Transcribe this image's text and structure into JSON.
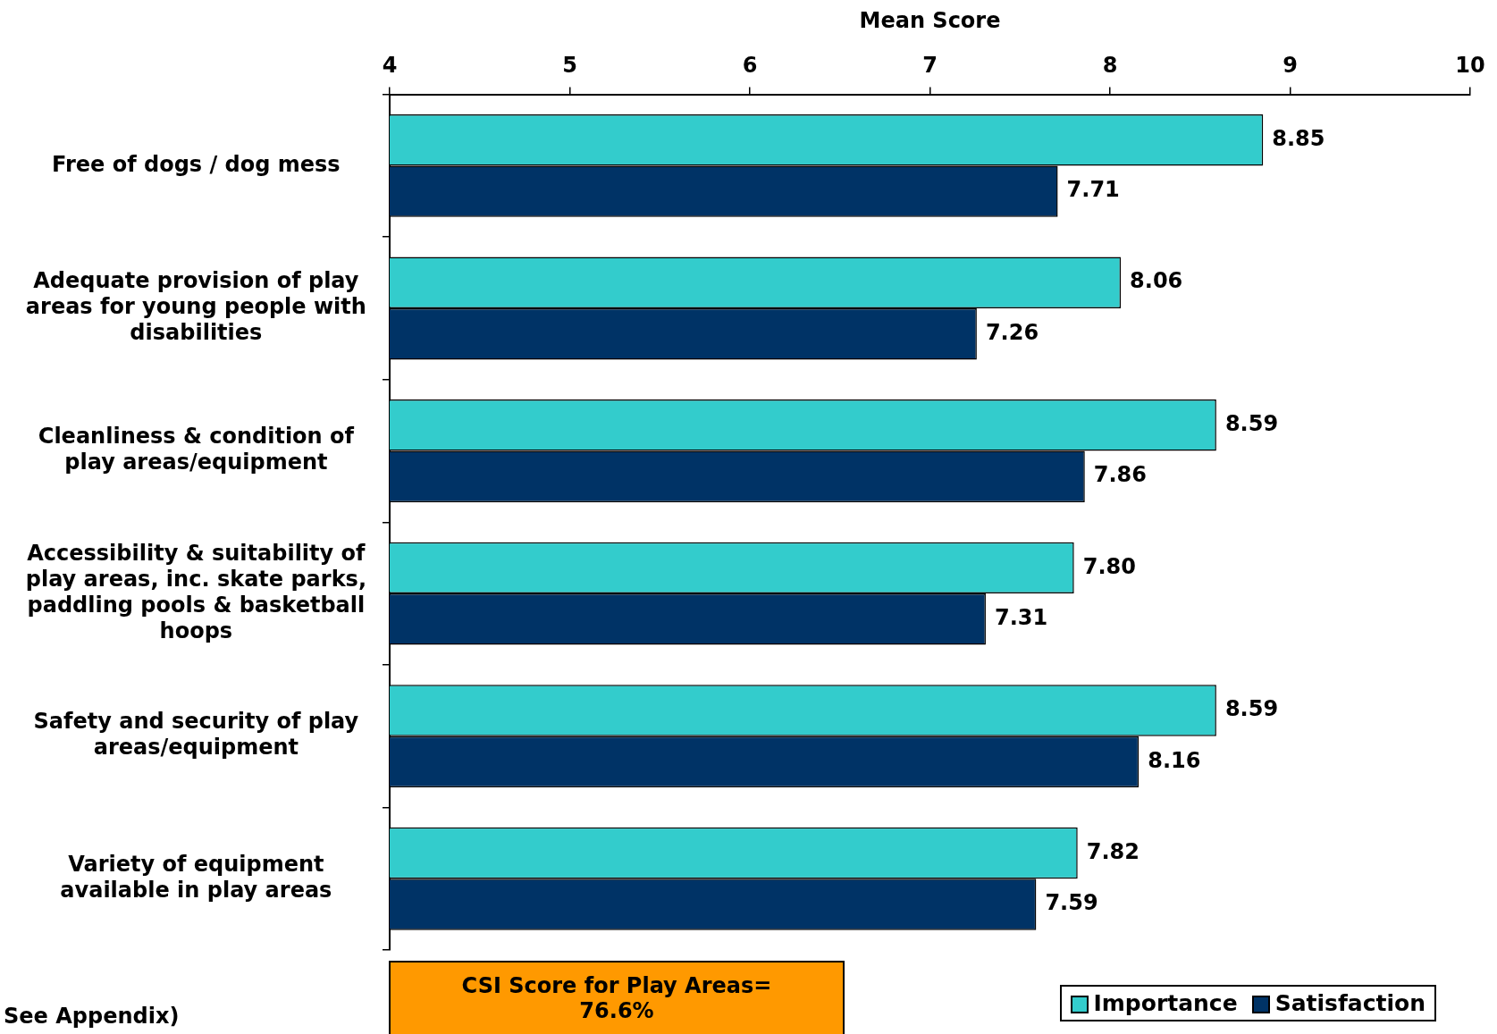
{
  "chart_data": {
    "type": "bar",
    "orientation": "horizontal",
    "xlabel": "Mean Score",
    "categories": [
      "Free of dogs / dog mess",
      "Adequate provision of play areas for young people with disabilities",
      "Cleanliness & condition of play areas/equipment",
      "Accessibility & suitability of play areas, inc. skate parks, paddling pools & basketball hoops",
      "Safety and security of play areas/equipment",
      "Variety of equipment available in play areas"
    ],
    "series": [
      {
        "name": "Importance",
        "color": "#33cccc",
        "values": [
          8.85,
          8.06,
          8.59,
          7.8,
          8.59,
          7.82
        ],
        "value_labels": [
          "8.85",
          "8.06",
          "8.59",
          "7.80",
          "8.59",
          "7.82"
        ]
      },
      {
        "name": "Satisfaction",
        "color": "#003366",
        "values": [
          7.71,
          7.26,
          7.86,
          7.31,
          8.16,
          7.59
        ],
        "value_labels": [
          "7.71",
          "7.26",
          "7.86",
          "7.31",
          "8.16",
          "7.59"
        ]
      }
    ],
    "xlim": [
      4,
      10
    ],
    "xticks": [
      4,
      5,
      6,
      7,
      8,
      9,
      10
    ],
    "grid": false,
    "legend": "bottom right",
    "annotations": [
      "CSI Score for Play Areas= 76.6%",
      "See Appendix)"
    ]
  }
}
